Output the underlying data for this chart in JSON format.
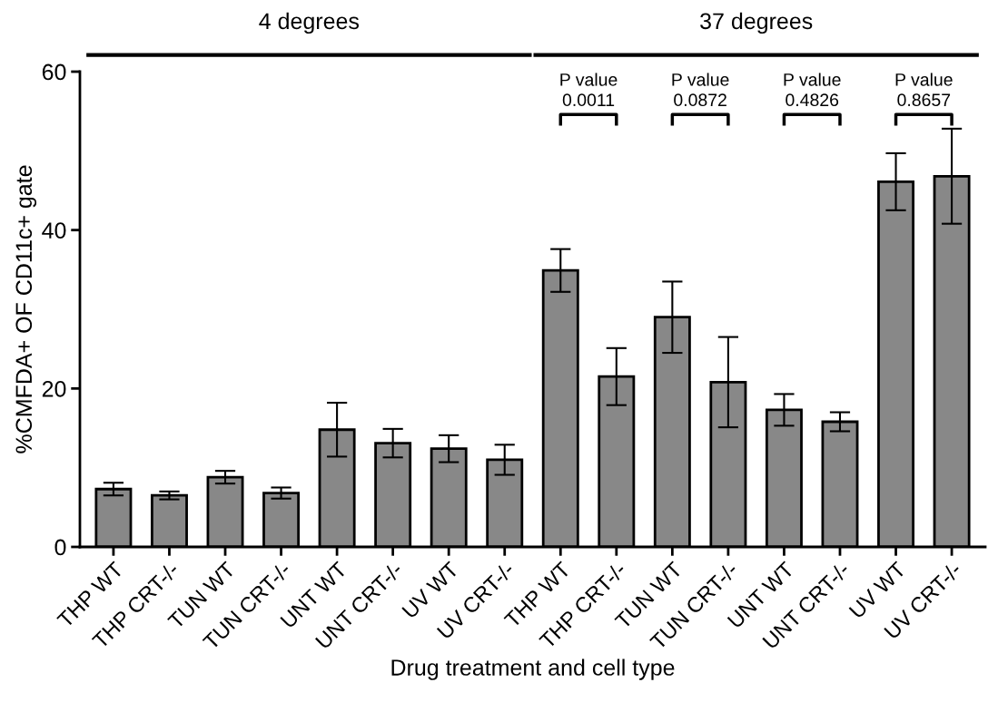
{
  "chart_data": {
    "type": "bar",
    "xlabel": "Drug treatment and cell type",
    "ylabel": "%CMFDA+ OF CD11c+ gate",
    "categories": [
      "THP WT",
      "THP CRT-/-",
      "TUN WT",
      "TUN CRT-/-",
      "UNT WT",
      "UNT CRT-/-",
      "UV WT",
      "UV CRT-/-",
      "THP WT",
      "THP CRT-/-",
      "TUN WT",
      "TUN CRT-/-",
      "UNT WT",
      "UNT CRT-/-",
      "UV WT",
      "UV CRT-/-"
    ],
    "values": [
      7.3,
      6.5,
      8.8,
      6.8,
      14.8,
      13.1,
      12.4,
      11.0,
      34.9,
      21.5,
      29.0,
      20.8,
      17.3,
      15.8,
      46.1,
      46.8
    ],
    "errors": [
      0.8,
      0.5,
      0.8,
      0.7,
      3.4,
      1.8,
      1.7,
      1.9,
      2.7,
      3.6,
      4.5,
      5.7,
      2.0,
      1.2,
      3.6,
      6.0
    ],
    "color": "#888888",
    "ylim": [
      0,
      60
    ],
    "yticks": [
      0,
      20,
      40,
      60
    ],
    "grid": false,
    "legend": false,
    "annotations": [
      "4 degrees",
      "37 degrees",
      "P value\n0.0011",
      "P value\n0.0872",
      "P value\n0.4826",
      "P value\n0.8657"
    ]
  }
}
